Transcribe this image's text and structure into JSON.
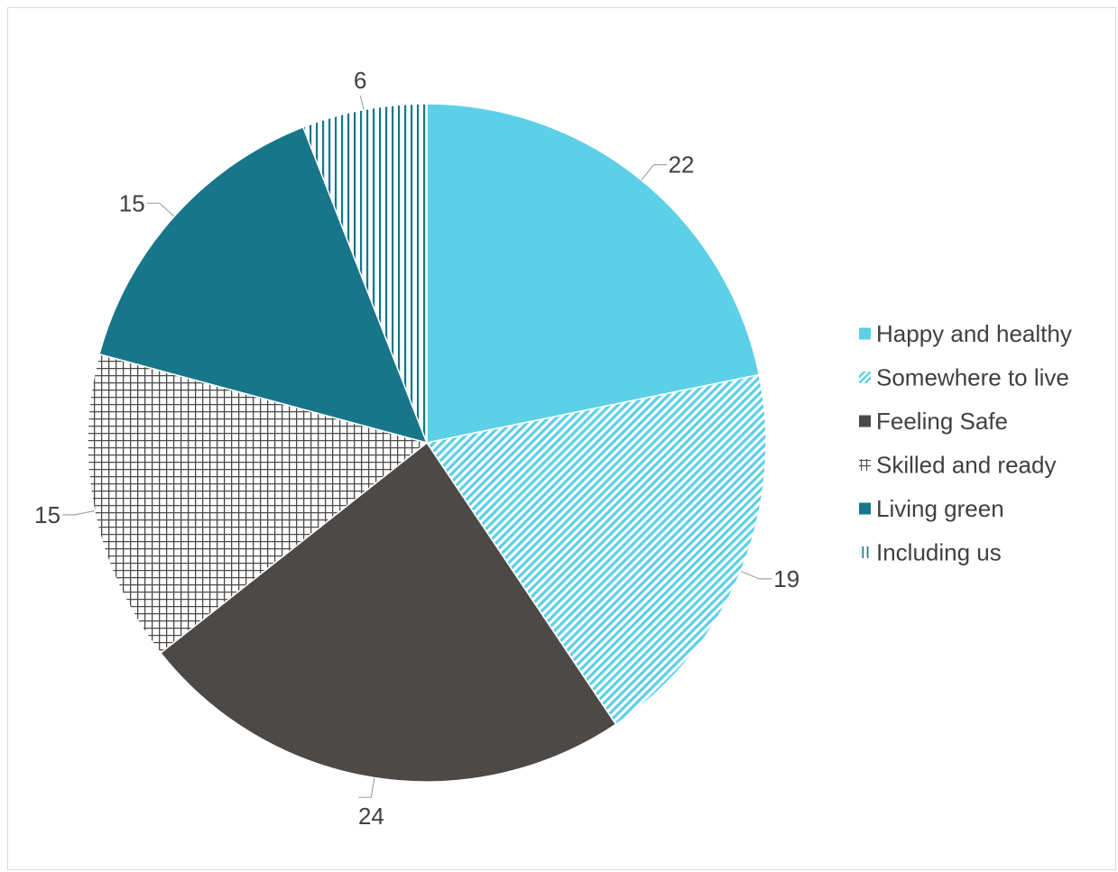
{
  "chart_data": {
    "type": "pie",
    "title": "",
    "categories": [
      "Happy and healthy",
      "Somewhere to live",
      "Feeling Safe",
      "Skilled and ready",
      "Living green",
      "Including us"
    ],
    "values": [
      22,
      19,
      24,
      15,
      15,
      6
    ],
    "start_angle_deg": 0,
    "direction": "clockwise",
    "legend_position": "right",
    "series": [
      {
        "name": "Happy and healthy",
        "value": 22,
        "color": "#5bd0e6",
        "pattern": "solid"
      },
      {
        "name": "Somewhere to live",
        "value": 19,
        "color": "#5bd0e6",
        "pattern": "diagonal-stripes"
      },
      {
        "name": "Feeling Safe",
        "value": 24,
        "color": "#4d4947",
        "pattern": "solid"
      },
      {
        "name": "Skilled and ready",
        "value": 15,
        "color": "#4d4947",
        "pattern": "grid"
      },
      {
        "name": "Living green",
        "value": 15,
        "color": "#17768a",
        "pattern": "solid"
      },
      {
        "name": "Including us",
        "value": 6,
        "color": "#17768a",
        "pattern": "vertical-stripes"
      }
    ],
    "data_labels": [
      "22",
      "19",
      "24",
      "15",
      "15",
      "6"
    ]
  }
}
